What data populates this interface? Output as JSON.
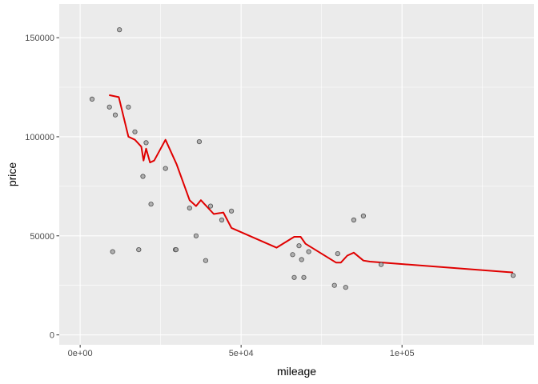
{
  "chart_data": {
    "type": "scatter",
    "title": "",
    "xlabel": "mileage",
    "ylabel": "price",
    "xlim": [
      -6500,
      141000
    ],
    "ylim": [
      -5000,
      167000
    ],
    "x_ticks": [
      0,
      50000,
      100000
    ],
    "x_tick_labels": [
      "0e+00",
      "5e+04",
      "1e+05"
    ],
    "y_ticks": [
      0,
      50000,
      100000,
      150000
    ],
    "y_tick_labels": [
      "0",
      "50000",
      "100000",
      "150000"
    ],
    "grid": true,
    "legend": "none",
    "colors": {
      "panel_bg": "#ebebeb",
      "grid": "#ffffff",
      "point_fill": "#a6a6a6",
      "point_stroke": "#4d4d4d",
      "line": "#e00000"
    },
    "points": [
      [
        3700,
        119000
      ],
      [
        9100,
        115000
      ],
      [
        10100,
        42000
      ],
      [
        10900,
        111000
      ],
      [
        12200,
        154000
      ],
      [
        15000,
        115000
      ],
      [
        17000,
        102500
      ],
      [
        18200,
        43000
      ],
      [
        19500,
        80000
      ],
      [
        20500,
        97000
      ],
      [
        22000,
        66000
      ],
      [
        26500,
        84000
      ],
      [
        29600,
        43000
      ],
      [
        29800,
        43000
      ],
      [
        34000,
        64000
      ],
      [
        36000,
        50000
      ],
      [
        37000,
        97500
      ],
      [
        39000,
        37500
      ],
      [
        40500,
        65000
      ],
      [
        44000,
        58000
      ],
      [
        47000,
        62500
      ],
      [
        66000,
        40500
      ],
      [
        66500,
        29000
      ],
      [
        68000,
        45000
      ],
      [
        68800,
        38000
      ],
      [
        69500,
        29000
      ],
      [
        71000,
        42000
      ],
      [
        79000,
        25000
      ],
      [
        80000,
        41000
      ],
      [
        82500,
        24000
      ],
      [
        85000,
        58000
      ],
      [
        88000,
        60000
      ],
      [
        93500,
        35500
      ],
      [
        134500,
        30000
      ]
    ],
    "series": [
      {
        "values": [
          [
            9000,
            121000
          ],
          [
            12000,
            120000
          ],
          [
            15000,
            100000
          ],
          [
            17000,
            98500
          ],
          [
            19000,
            95000
          ],
          [
            19700,
            88000
          ],
          [
            20500,
            94000
          ],
          [
            21700,
            87000
          ],
          [
            23000,
            88000
          ],
          [
            26500,
            98500
          ],
          [
            30000,
            86000
          ],
          [
            34000,
            68000
          ],
          [
            36000,
            65000
          ],
          [
            37500,
            68000
          ],
          [
            41500,
            61000
          ],
          [
            43500,
            61500
          ],
          [
            44500,
            61800
          ],
          [
            47000,
            54000
          ],
          [
            61000,
            44000
          ],
          [
            66500,
            49500
          ],
          [
            68500,
            49500
          ],
          [
            70000,
            46000
          ],
          [
            79500,
            36500
          ],
          [
            81000,
            36500
          ],
          [
            83000,
            40000
          ],
          [
            85000,
            41500
          ],
          [
            88000,
            37500
          ],
          [
            90000,
            37000
          ],
          [
            134500,
            31500
          ]
        ]
      }
    ]
  }
}
